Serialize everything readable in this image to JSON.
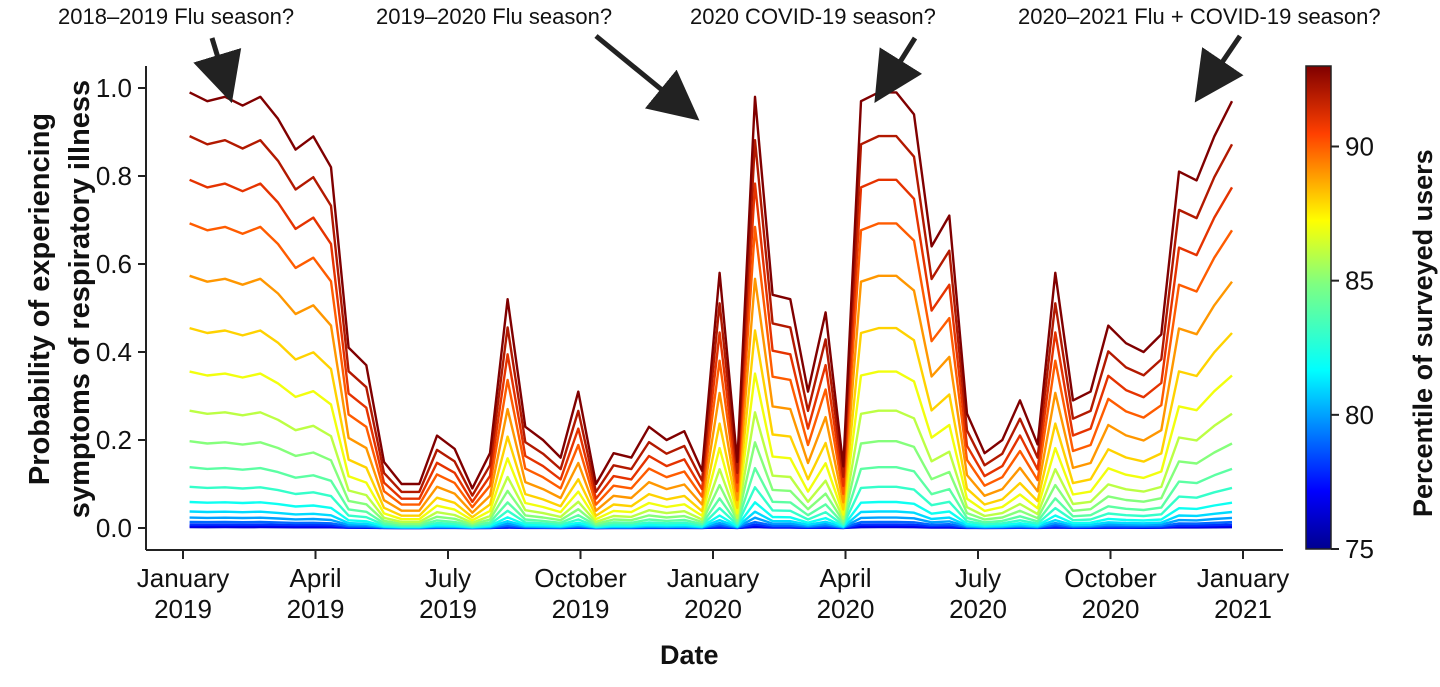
{
  "chart_data": {
    "type": "line",
    "xlabel": "Date",
    "ylabel_lines": [
      "Probability of experiencing",
      "symptoms of respiratory illness"
    ],
    "ylim": [
      0,
      1.05
    ],
    "yticks": [
      "0.0",
      "0.2",
      "0.4",
      "0.6",
      "0.8",
      "1.0"
    ],
    "xticks": [
      {
        "line1": "January",
        "line2": "2019",
        "month": 0
      },
      {
        "line1": "April",
        "line2": "2019",
        "month": 3
      },
      {
        "line1": "July",
        "line2": "2019",
        "month": 6
      },
      {
        "line1": "October",
        "line2": "2019",
        "month": 9
      },
      {
        "line1": "January",
        "line2": "2020",
        "month": 12
      },
      {
        "line1": "April",
        "line2": "2020",
        "month": 15
      },
      {
        "line1": "July",
        "line2": "2020",
        "month": 18
      },
      {
        "line1": "October",
        "line2": "2020",
        "month": 21
      },
      {
        "line1": "January",
        "line2": "2021",
        "month": 24
      }
    ],
    "colorbar": {
      "label": "Percentile of surveyed users",
      "range": [
        75,
        93
      ],
      "ticks": [
        "75",
        "80",
        "85",
        "90"
      ]
    },
    "annotations": [
      {
        "text": "2018–2019 Flu season?"
      },
      {
        "text": "2019–2020 Flu season?"
      },
      {
        "text": "2020 COVID-19 season?"
      },
      {
        "text": "2020–2021 Flu + COVID-19 season?"
      }
    ],
    "x_months": [
      0.15,
      0.55,
      0.95,
      1.35,
      1.75,
      2.15,
      2.55,
      2.95,
      3.35,
      3.75,
      4.15,
      4.55,
      4.95,
      5.35,
      5.75,
      6.15,
      6.55,
      6.95,
      7.35,
      7.75,
      8.15,
      8.55,
      8.95,
      9.35,
      9.75,
      10.15,
      10.55,
      10.95,
      11.35,
      11.75,
      12.15,
      12.55,
      12.95,
      13.35,
      13.75,
      14.15,
      14.55,
      14.95,
      15.35,
      15.75,
      16.15,
      16.55,
      16.95,
      17.35,
      17.75,
      18.15,
      18.55,
      18.95,
      19.35,
      19.75,
      20.15,
      20.55,
      20.95,
      21.35,
      21.75,
      22.15,
      22.55,
      22.95,
      23.35,
      23.75
    ],
    "top_series_percentile": 93,
    "top_series": [
      0.99,
      0.97,
      0.98,
      0.96,
      0.98,
      0.93,
      0.86,
      0.89,
      0.82,
      0.41,
      0.37,
      0.15,
      0.1,
      0.1,
      0.21,
      0.18,
      0.09,
      0.17,
      0.52,
      0.23,
      0.2,
      0.16,
      0.31,
      0.1,
      0.17,
      0.16,
      0.23,
      0.2,
      0.22,
      0.13,
      0.58,
      0.15,
      0.98,
      0.53,
      0.52,
      0.31,
      0.49,
      0.14,
      0.97,
      0.99,
      0.99,
      0.94,
      0.64,
      0.71,
      0.26,
      0.17,
      0.2,
      0.29,
      0.19,
      0.58,
      0.29,
      0.31,
      0.46,
      0.42,
      0.4,
      0.44,
      0.81,
      0.79,
      0.89,
      0.97
    ],
    "scale_factors": [
      1.0,
      0.9,
      0.8,
      0.7,
      0.58,
      0.46,
      0.36,
      0.27,
      0.2,
      0.14,
      0.095,
      0.06,
      0.038,
      0.024,
      0.014,
      0.008,
      0.004,
      0.002
    ],
    "series_percentiles": [
      93,
      92,
      91,
      90,
      89,
      88,
      87,
      86,
      85,
      84,
      83,
      82,
      81,
      80,
      79,
      78,
      77,
      76
    ]
  }
}
